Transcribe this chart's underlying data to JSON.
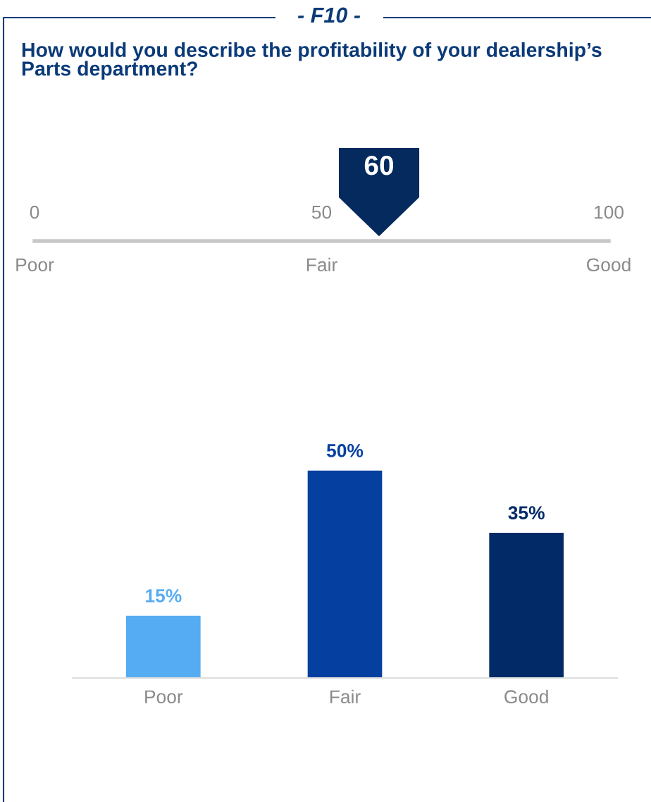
{
  "chart_data": [
    {
      "type": "scatter",
      "title": "How would you describe the profitability of your dealership’s Parts department?",
      "annotations": [
        "- F10 -",
        "Poor",
        "Fair",
        "Good"
      ],
      "orientation": "horizontal",
      "values": [
        60
      ],
      "data_labels": true,
      "color": "#052a5e",
      "tick_labels": "x",
      "xlim": [
        0,
        100
      ],
      "xticks": [
        0,
        50,
        100
      ]
    },
    {
      "type": "bar",
      "categories": [
        "Poor",
        "Fair",
        "Good"
      ],
      "values": [
        15,
        50,
        35
      ],
      "colors": [
        "#56acf2",
        "#0540a0",
        "#022a66"
      ],
      "value_labels": [
        "15%",
        "50%",
        "35%"
      ]
    }
  ]
}
